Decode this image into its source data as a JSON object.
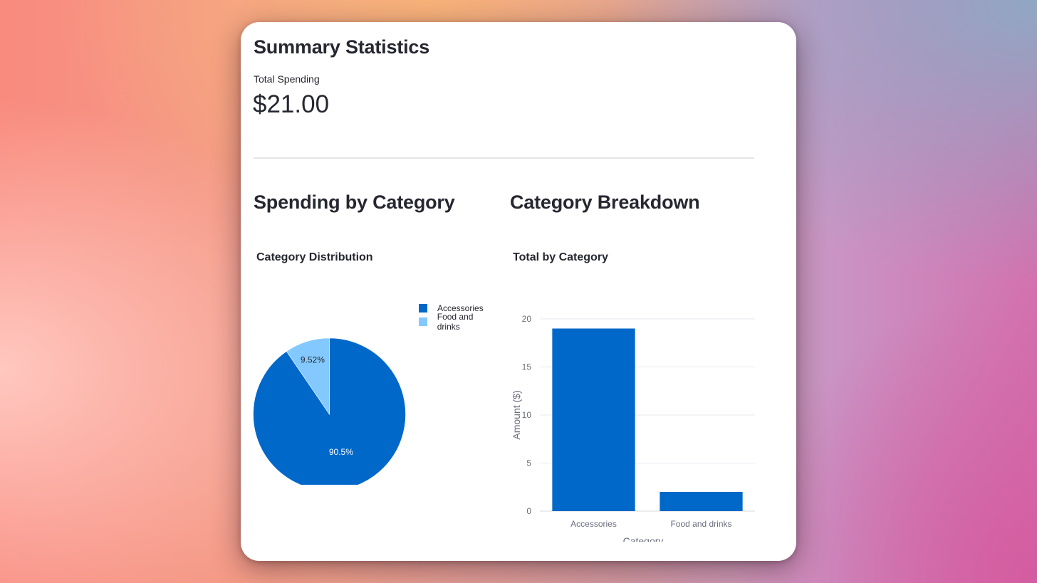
{
  "summary": {
    "title": "Summary Statistics",
    "metric_label": "Total Spending",
    "metric_value": "$21.00"
  },
  "left_section": {
    "title": "Spending by Category"
  },
  "right_section": {
    "title": "Category Breakdown"
  },
  "colors": {
    "primary": "#0068c9",
    "secondary": "#83c9ff"
  },
  "chart_data": [
    {
      "type": "pie",
      "title": "Category Distribution",
      "categories": [
        "Accessories",
        "Food and drinks"
      ],
      "values": [
        90.5,
        9.52
      ],
      "labels": [
        "90.5%",
        "9.52%"
      ],
      "colors": [
        "#0068c9",
        "#83c9ff"
      ],
      "legend": "top-right"
    },
    {
      "type": "bar",
      "title": "Total by Category",
      "categories": [
        "Accessories",
        "Food and drinks"
      ],
      "values": [
        19,
        2
      ],
      "xlabel": "Category",
      "ylabel": "Amount ($)",
      "ylim": [
        0,
        20
      ],
      "yticks": [
        0,
        5,
        10,
        15,
        20
      ],
      "grid": true,
      "color": "#0068c9"
    }
  ]
}
